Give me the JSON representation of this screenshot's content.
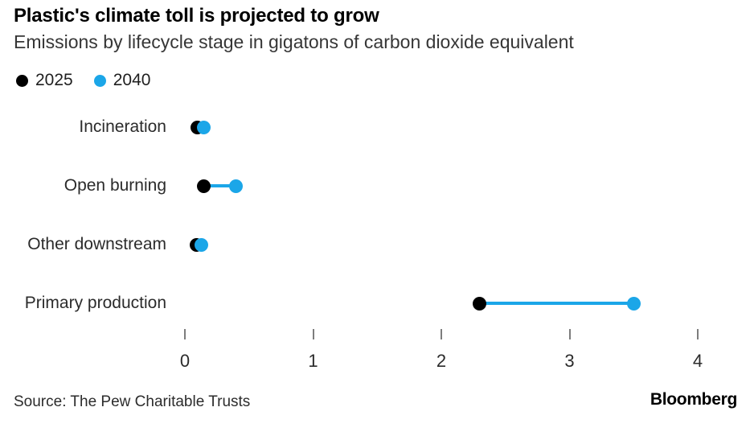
{
  "chart_data": {
    "type": "dumbbell",
    "title": "Plastic's climate toll is projected to grow",
    "subtitle": "Emissions by lifecycle stage in gigatons of carbon dioxide equivalent",
    "categories": [
      "Incineration",
      "Open burning",
      "Other downstream",
      "Primary production"
    ],
    "series": [
      {
        "name": "2025",
        "color": "#000000",
        "values": [
          0.1,
          0.15,
          0.09,
          2.3
        ]
      },
      {
        "name": "2040",
        "color": "#1ba6e8",
        "values": [
          0.15,
          0.4,
          0.13,
          3.5
        ]
      }
    ],
    "xlim": [
      0,
      4
    ],
    "x_ticks": [
      0,
      1,
      2,
      3,
      4
    ],
    "xlabel": "",
    "ylabel": "",
    "grid": false,
    "legend_position": "top-left",
    "axis_tick_color": "#7d7d7d"
  },
  "footer": {
    "source": "Source: The Pew Charitable Trusts",
    "brand": "Bloomberg"
  }
}
